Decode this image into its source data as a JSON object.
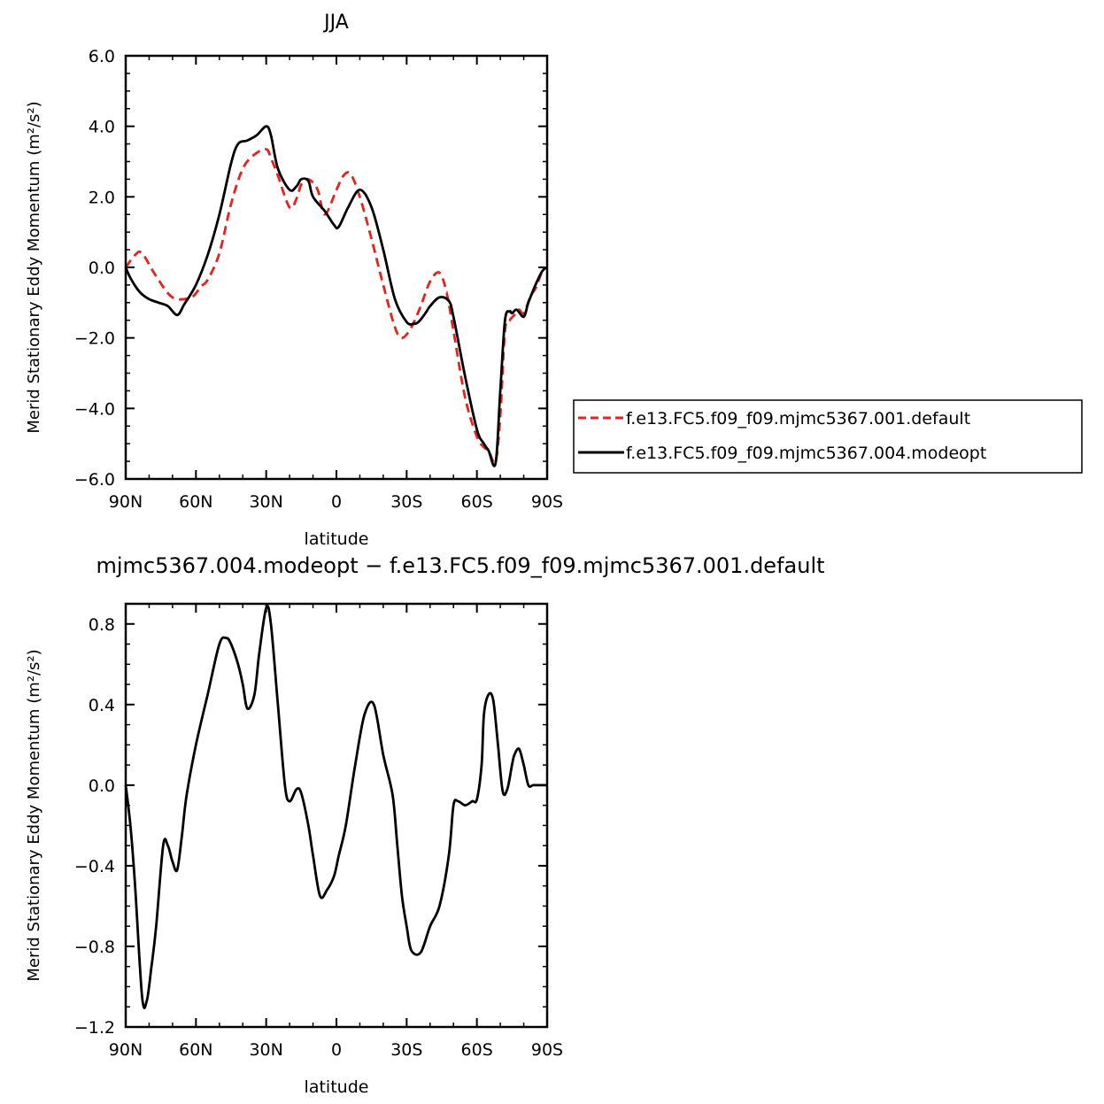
{
  "chart_data": [
    {
      "type": "line",
      "title": "JJA",
      "xlabel": "latitude",
      "ylabel": "Merid Stationary Eddy Momentum  (m²/s²)",
      "ylim": [
        -6.0,
        6.0
      ],
      "xlim": [
        90,
        -90
      ],
      "yticks": [
        -6.0,
        -4.0,
        -2.0,
        0.0,
        2.0,
        4.0,
        6.0
      ],
      "ytick_labels": [
        "−6.0",
        "−4.0",
        "−2.0",
        "0.0",
        "2.0",
        "4.0",
        "6.0"
      ],
      "xticks": [
        90,
        60,
        30,
        0,
        -30,
        -60,
        -90
      ],
      "xtick_labels": [
        "90N",
        "60N",
        "30N",
        "0",
        "30S",
        "60S",
        "90S"
      ],
      "legend_position": "right",
      "grid": false,
      "series": [
        {
          "name": "f.e13.FC5.f09_f09.mjmc5367.001.default",
          "color": "#e8211c",
          "dash": "dashed",
          "x": [
            90,
            86,
            83,
            77,
            70,
            62,
            58,
            55,
            50,
            45,
            40,
            35,
            30,
            28,
            25,
            20,
            17,
            15,
            12,
            8,
            5,
            0,
            -3,
            -6,
            -10,
            -15,
            -20,
            -25,
            -28,
            -32,
            -36,
            -40,
            -44,
            -47,
            -50,
            -55,
            -60,
            -63,
            -65,
            -68,
            -70,
            -72,
            -74,
            -76,
            -78,
            -80,
            -83,
            -85,
            -88,
            -90
          ],
          "y": [
            0.0,
            0.35,
            0.4,
            -0.25,
            -0.85,
            -0.85,
            -0.55,
            -0.35,
            0.4,
            1.8,
            2.8,
            3.2,
            3.35,
            3.1,
            2.6,
            1.7,
            1.95,
            2.35,
            2.5,
            2.2,
            1.5,
            2.2,
            2.6,
            2.65,
            2.0,
            0.8,
            -0.5,
            -1.7,
            -2.0,
            -1.7,
            -1.1,
            -0.4,
            -0.15,
            -0.7,
            -1.8,
            -3.7,
            -4.8,
            -5.1,
            -5.2,
            -5.5,
            -4.2,
            -1.8,
            -1.5,
            -1.35,
            -1.2,
            -1.3,
            -0.8,
            -0.6,
            -0.1,
            0.0
          ]
        },
        {
          "name": "f.e13.FC5.f09_f09.mjmc5367.004.modeopt",
          "color": "#000000",
          "dash": "solid",
          "x": [
            90,
            88,
            84,
            80,
            76,
            72,
            68,
            65,
            60,
            55,
            50,
            45,
            42,
            38,
            34,
            30,
            28,
            25,
            20,
            17,
            15,
            12,
            10,
            5,
            1,
            -1,
            -5,
            -10,
            -15,
            -20,
            -25,
            -30,
            -33,
            -35,
            -38,
            -40,
            -44,
            -48,
            -50,
            -55,
            -60,
            -63,
            -65,
            -68,
            -70,
            -72,
            -74,
            -75,
            -77,
            -80,
            -82,
            -85,
            -88,
            -90
          ],
          "y": [
            0.0,
            -0.3,
            -0.7,
            -0.9,
            -1.0,
            -1.1,
            -1.35,
            -1.05,
            -0.5,
            0.35,
            1.5,
            2.95,
            3.5,
            3.6,
            3.75,
            4.0,
            3.75,
            2.8,
            2.2,
            2.3,
            2.5,
            2.45,
            2.0,
            1.6,
            1.2,
            1.15,
            1.7,
            2.2,
            1.7,
            0.5,
            -0.9,
            -1.55,
            -1.6,
            -1.55,
            -1.3,
            -1.1,
            -0.85,
            -0.95,
            -1.4,
            -3.1,
            -4.6,
            -5.0,
            -5.2,
            -5.55,
            -3.5,
            -1.5,
            -1.25,
            -1.3,
            -1.2,
            -1.4,
            -1.0,
            -0.5,
            -0.1,
            0.0
          ]
        }
      ]
    },
    {
      "type": "line",
      "title": "mjmc5367.004.modeopt − f.e13.FC5.f09_f09.mjmc5367.001.default",
      "xlabel": "latitude",
      "ylabel": "Merid Stationary Eddy Momentum  (m²/s²)",
      "ylim": [
        -1.2,
        0.9
      ],
      "xlim": [
        90,
        -90
      ],
      "yticks": [
        -1.2,
        -0.8,
        -0.4,
        0.0,
        0.4,
        0.8
      ],
      "ytick_labels": [
        "−1.2",
        "−0.8",
        "−0.4",
        "0.0",
        "0.4",
        "0.8"
      ],
      "xticks": [
        90,
        60,
        30,
        0,
        -30,
        -60,
        -90
      ],
      "xtick_labels": [
        "90N",
        "60N",
        "30N",
        "0",
        "30S",
        "60S",
        "90S"
      ],
      "grid": false,
      "series": [
        {
          "color": "#000000",
          "dash": "solid",
          "x": [
            90,
            88,
            86,
            83,
            81,
            79,
            77,
            74,
            72,
            70,
            68,
            66,
            64,
            60,
            55,
            50,
            47,
            45,
            42,
            40,
            38,
            35,
            33,
            30,
            28,
            25,
            22,
            20,
            17,
            15,
            12,
            10,
            7,
            4,
            1,
            -1,
            -4,
            -8,
            -12,
            -16,
            -20,
            -24,
            -26,
            -28,
            -30,
            -32,
            -36,
            -40,
            -44,
            -48,
            -50,
            -52,
            -55,
            -58,
            -60,
            -62,
            -63,
            -65,
            -67,
            -69,
            -71,
            -73,
            -75,
            -76,
            -78,
            -80,
            -82,
            -84,
            -86,
            -88,
            -90
          ],
          "y": [
            0.0,
            -0.2,
            -0.5,
            -1.05,
            -1.07,
            -0.9,
            -0.7,
            -0.3,
            -0.3,
            -0.38,
            -0.42,
            -0.25,
            -0.05,
            0.2,
            0.45,
            0.7,
            0.73,
            0.7,
            0.6,
            0.5,
            0.38,
            0.45,
            0.65,
            0.88,
            0.8,
            0.4,
            0.0,
            -0.08,
            -0.02,
            -0.04,
            -0.2,
            -0.35,
            -0.55,
            -0.52,
            -0.45,
            -0.35,
            -0.2,
            0.1,
            0.35,
            0.4,
            0.15,
            -0.05,
            -0.3,
            -0.55,
            -0.7,
            -0.82,
            -0.83,
            -0.7,
            -0.6,
            -0.35,
            -0.1,
            -0.08,
            -0.1,
            -0.08,
            -0.07,
            0.1,
            0.35,
            0.45,
            0.42,
            0.2,
            -0.03,
            -0.02,
            0.1,
            0.15,
            0.18,
            0.1,
            0.0,
            0.0,
            0.0,
            0.0,
            0.0
          ]
        }
      ]
    }
  ]
}
